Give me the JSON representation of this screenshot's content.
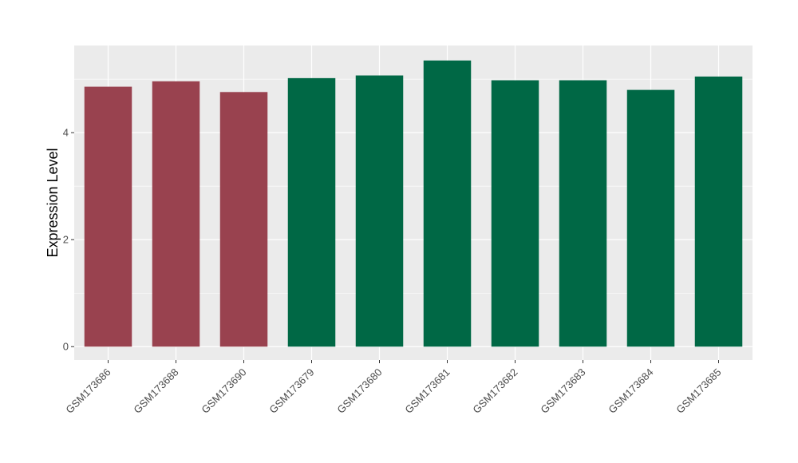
{
  "chart_data": {
    "type": "bar",
    "title": "",
    "xlabel": "",
    "ylabel": "Expression Level",
    "categories": [
      "GSM173686",
      "GSM173688",
      "GSM173690",
      "GSM173679",
      "GSM173680",
      "GSM173681",
      "GSM173682",
      "GSM173683",
      "GSM173684",
      "GSM173685"
    ],
    "values": [
      4.86,
      4.96,
      4.76,
      5.02,
      5.07,
      5.35,
      4.98,
      4.98,
      4.8,
      5.05
    ],
    "groups": [
      0,
      0,
      0,
      1,
      1,
      1,
      1,
      1,
      1,
      1
    ],
    "group_colors": [
      "#99424f",
      "#006845"
    ],
    "yticks": [
      0,
      2,
      4
    ],
    "ylim": [
      -0.25,
      5.63
    ],
    "grid": true,
    "panel_background": "#ebebeb",
    "gridline_color": "#ffffff"
  }
}
